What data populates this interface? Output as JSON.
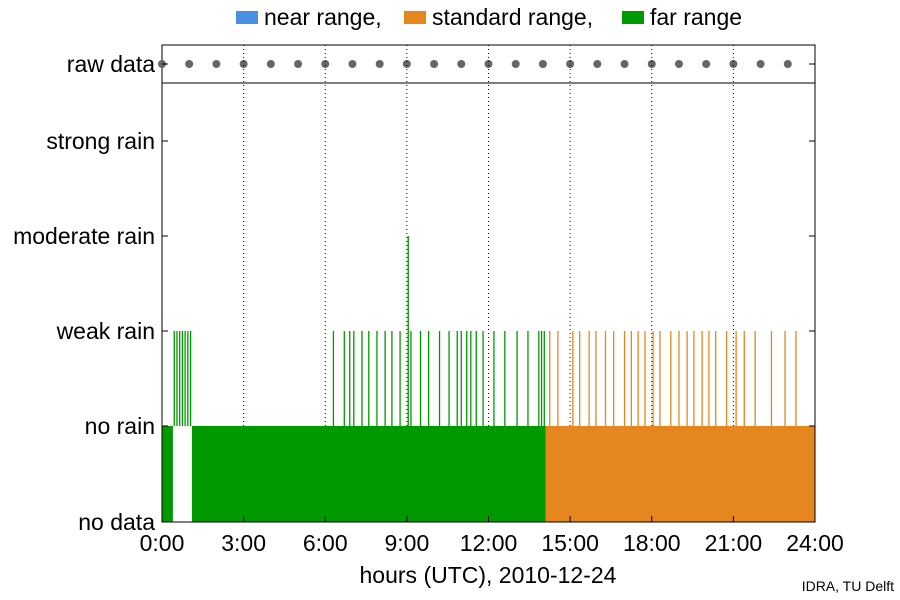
{
  "chart_data": {
    "type": "bar",
    "title": "",
    "xlabel": "hours (UTC), 2010-12-24",
    "ylabel": "",
    "xlim": [
      0,
      24
    ],
    "x_ticks": [
      "0:00",
      "3:00",
      "6:00",
      "9:00",
      "12:00",
      "15:00",
      "18:00",
      "21:00",
      "24:00"
    ],
    "y_categories": [
      "no data",
      "no rain",
      "weak rain",
      "moderate rain",
      "strong rain",
      "raw data"
    ],
    "grid": "vertical dotted",
    "legend_position": "top",
    "series": [
      {
        "name": "near range",
        "color": "#4a90e2",
        "baseline": "no rain",
        "spans": [],
        "spikes": []
      },
      {
        "name": "standard range",
        "color": "#e6861e",
        "baseline": "no rain",
        "spans": [
          [
            14.1,
            24.0
          ]
        ],
        "spikes": [
          {
            "x": 14.25,
            "level": "weak rain"
          },
          {
            "x": 14.55,
            "level": "weak rain"
          },
          {
            "x": 15.1,
            "level": "weak rain"
          },
          {
            "x": 15.35,
            "level": "weak rain"
          },
          {
            "x": 15.7,
            "level": "weak rain"
          },
          {
            "x": 15.95,
            "level": "weak rain"
          },
          {
            "x": 16.3,
            "level": "weak rain"
          },
          {
            "x": 16.6,
            "level": "weak rain"
          },
          {
            "x": 17.0,
            "level": "weak rain"
          },
          {
            "x": 17.25,
            "level": "weak rain"
          },
          {
            "x": 17.5,
            "level": "weak rain"
          },
          {
            "x": 17.75,
            "level": "weak rain"
          },
          {
            "x": 18.05,
            "level": "weak rain"
          },
          {
            "x": 18.3,
            "level": "weak rain"
          },
          {
            "x": 18.7,
            "level": "weak rain"
          },
          {
            "x": 19.0,
            "level": "weak rain"
          },
          {
            "x": 19.3,
            "level": "weak rain"
          },
          {
            "x": 19.55,
            "level": "weak rain"
          },
          {
            "x": 19.85,
            "level": "weak rain"
          },
          {
            "x": 20.1,
            "level": "weak rain"
          },
          {
            "x": 20.35,
            "level": "weak rain"
          },
          {
            "x": 20.75,
            "level": "weak rain"
          },
          {
            "x": 21.1,
            "level": "weak rain"
          },
          {
            "x": 21.4,
            "level": "weak rain"
          },
          {
            "x": 21.8,
            "level": "weak rain"
          },
          {
            "x": 22.4,
            "level": "weak rain"
          },
          {
            "x": 22.9,
            "level": "weak rain"
          },
          {
            "x": 23.3,
            "level": "weak rain"
          }
        ]
      },
      {
        "name": "far range",
        "color": "#009900",
        "baseline": "no rain",
        "spans": [
          [
            0.0,
            0.4
          ],
          [
            1.1,
            14.1
          ]
        ],
        "spikes": [
          {
            "x": 0.45,
            "level": "weak rain"
          },
          {
            "x": 0.55,
            "level": "weak rain"
          },
          {
            "x": 0.65,
            "level": "weak rain"
          },
          {
            "x": 0.75,
            "level": "weak rain"
          },
          {
            "x": 0.85,
            "level": "weak rain"
          },
          {
            "x": 0.95,
            "level": "weak rain"
          },
          {
            "x": 1.05,
            "level": "weak rain"
          },
          {
            "x": 6.3,
            "level": "weak rain"
          },
          {
            "x": 6.7,
            "level": "weak rain"
          },
          {
            "x": 6.9,
            "level": "weak rain"
          },
          {
            "x": 7.05,
            "level": "weak rain"
          },
          {
            "x": 7.35,
            "level": "weak rain"
          },
          {
            "x": 7.6,
            "level": "weak rain"
          },
          {
            "x": 7.9,
            "level": "weak rain"
          },
          {
            "x": 8.2,
            "level": "weak rain"
          },
          {
            "x": 8.45,
            "level": "weak rain"
          },
          {
            "x": 8.75,
            "level": "weak rain"
          },
          {
            "x": 9.05,
            "level": "moderate rain"
          },
          {
            "x": 9.15,
            "level": "weak rain"
          },
          {
            "x": 9.5,
            "level": "weak rain"
          },
          {
            "x": 9.8,
            "level": "weak rain"
          },
          {
            "x": 10.2,
            "level": "weak rain"
          },
          {
            "x": 10.55,
            "level": "weak rain"
          },
          {
            "x": 10.85,
            "level": "weak rain"
          },
          {
            "x": 11.0,
            "level": "weak rain"
          },
          {
            "x": 11.2,
            "level": "weak rain"
          },
          {
            "x": 11.35,
            "level": "weak rain"
          },
          {
            "x": 11.55,
            "level": "weak rain"
          },
          {
            "x": 11.8,
            "level": "weak rain"
          },
          {
            "x": 12.2,
            "level": "weak rain"
          },
          {
            "x": 12.6,
            "level": "weak rain"
          },
          {
            "x": 13.05,
            "level": "weak rain"
          },
          {
            "x": 13.45,
            "level": "weak rain"
          },
          {
            "x": 13.85,
            "level": "weak rain"
          },
          {
            "x": 13.95,
            "level": "weak rain"
          },
          {
            "x": 14.05,
            "level": "weak rain"
          }
        ]
      }
    ],
    "no_data_marks": [
      {
        "x": 0.45,
        "level": "no data"
      },
      {
        "x": 0.55,
        "level": "no data"
      },
      {
        "x": 0.65,
        "level": "no data"
      },
      {
        "x": 0.75,
        "level": "no data"
      },
      {
        "x": 0.85,
        "level": "no data"
      },
      {
        "x": 0.95,
        "level": "no data"
      },
      {
        "x": 1.05,
        "level": "no data"
      }
    ],
    "raw_data_points": [
      0,
      1,
      2,
      3,
      4,
      5,
      6,
      7,
      8,
      9,
      10,
      11,
      12,
      13,
      14,
      15,
      16,
      17,
      18,
      19,
      20,
      21,
      22,
      23
    ]
  },
  "credit": "IDRA, TU Delft"
}
